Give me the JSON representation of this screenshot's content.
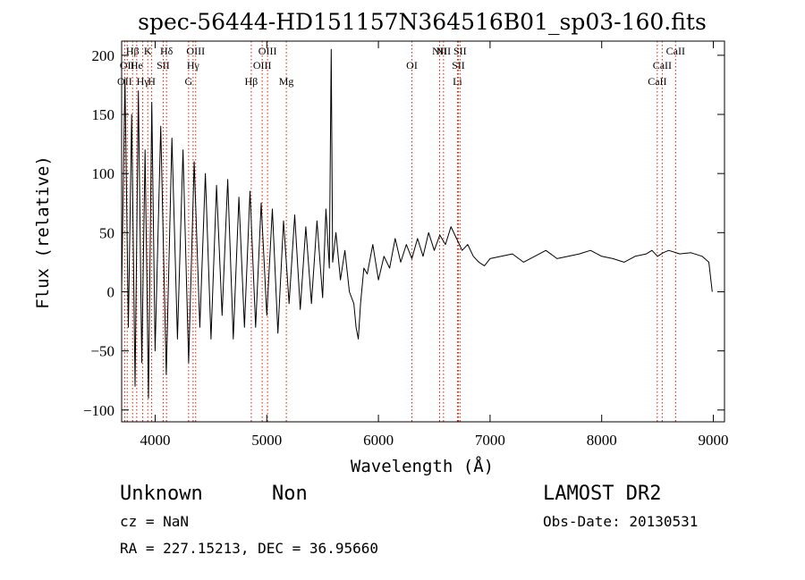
{
  "chart_data": {
    "type": "line",
    "title": "spec-56444-HD151157N364516B01_sp03-160.fits",
    "xlabel": "Wavelength (Å)",
    "ylabel": "Flux (relative)",
    "xlim": [
      3700,
      9100
    ],
    "ylim": [
      -110,
      212
    ],
    "x_ticks": [
      4000,
      5000,
      6000,
      7000,
      8000,
      9000
    ],
    "y_ticks": [
      -100,
      -50,
      0,
      50,
      100,
      150,
      200
    ],
    "y_tick_labels": [
      "−100",
      "−50",
      "0",
      "50",
      "100",
      "150",
      "200"
    ],
    "grid": false,
    "series": [
      {
        "x": [
          3700,
          3730,
          3760,
          3790,
          3820,
          3850,
          3880,
          3910,
          3940,
          3970,
          4000,
          4050,
          4100,
          4150,
          4200,
          4250,
          4300,
          4350,
          4400,
          4450,
          4500,
          4550,
          4600,
          4650,
          4700,
          4750,
          4800,
          4850,
          4900,
          4950,
          5000,
          5050,
          5100,
          5150,
          5200,
          5250,
          5300,
          5350,
          5400,
          5450,
          5500,
          5530,
          5560,
          5577,
          5590,
          5620,
          5660,
          5700,
          5740,
          5780,
          5800,
          5820,
          5840,
          5870,
          5900,
          5950,
          6000,
          6050,
          6100,
          6150,
          6200,
          6250,
          6300,
          6350,
          6400,
          6450,
          6500,
          6550,
          6600,
          6650,
          6700,
          6750,
          6800,
          6850,
          6900,
          6950,
          7000,
          7100,
          7200,
          7300,
          7400,
          7500,
          7600,
          7700,
          7800,
          7900,
          8000,
          8100,
          8200,
          8300,
          8400,
          8450,
          8500,
          8550,
          8600,
          8700,
          8800,
          8900,
          8960,
          8990
        ],
        "values": [
          0,
          180,
          -30,
          150,
          -80,
          170,
          -60,
          120,
          -90,
          160,
          -50,
          140,
          -70,
          130,
          -40,
          120,
          -60,
          110,
          -30,
          100,
          -40,
          90,
          -20,
          95,
          -40,
          80,
          -30,
          85,
          -30,
          75,
          -20,
          70,
          -35,
          60,
          -10,
          65,
          -15,
          55,
          -10,
          60,
          -5,
          70,
          20,
          205,
          25,
          50,
          10,
          35,
          0,
          -10,
          -30,
          -40,
          -10,
          20,
          15,
          40,
          10,
          30,
          20,
          45,
          25,
          40,
          28,
          45,
          30,
          50,
          35,
          48,
          40,
          55,
          45,
          35,
          40,
          30,
          25,
          22,
          28,
          30,
          32,
          25,
          30,
          35,
          28,
          30,
          32,
          35,
          30,
          28,
          25,
          30,
          32,
          35,
          30,
          33,
          35,
          32,
          33,
          30,
          25,
          0
        ]
      }
    ],
    "lines": [
      {
        "wavelength": 3727,
        "label": "OII",
        "row": 3
      },
      {
        "wavelength": 3750,
        "label": "OII",
        "row": 2
      },
      {
        "wavelength": 3798,
        "label": "Hβ",
        "row": 1
      },
      {
        "wavelength": 3835,
        "label": "He",
        "row": 2
      },
      {
        "wavelength": 3889,
        "label": "Hγ",
        "row": 3
      },
      {
        "wavelength": 3934,
        "label": "K",
        "row": 1
      },
      {
        "wavelength": 3969,
        "label": "H",
        "row": 3
      },
      {
        "wavelength": 4072,
        "label": "SII",
        "row": 2
      },
      {
        "wavelength": 4102,
        "label": "Hδ",
        "row": 1
      },
      {
        "wavelength": 4300,
        "label": "G",
        "row": 3
      },
      {
        "wavelength": 4340,
        "label": "Hγ",
        "row": 2
      },
      {
        "wavelength": 4363,
        "label": "OIII",
        "row": 1
      },
      {
        "wavelength": 4861,
        "label": "Hβ",
        "row": 3
      },
      {
        "wavelength": 4959,
        "label": "OIII",
        "row": 2
      },
      {
        "wavelength": 5007,
        "label": "OIII",
        "row": 1
      },
      {
        "wavelength": 5175,
        "label": "Mg",
        "row": 3
      },
      {
        "wavelength": 6300,
        "label": "OI",
        "row": 2
      },
      {
        "wavelength": 6548,
        "label": "NII",
        "row": 1
      },
      {
        "wavelength": 6583,
        "label": "NII",
        "row": 1
      },
      {
        "wavelength": 6708,
        "label": "Li",
        "row": 3
      },
      {
        "wavelength": 6716,
        "label": "SII",
        "row": 2
      },
      {
        "wavelength": 6731,
        "label": "SII",
        "row": 1
      },
      {
        "wavelength": 8498,
        "label": "CaII",
        "row": 3
      },
      {
        "wavelength": 8542,
        "label": "CaII",
        "row": 2
      },
      {
        "wavelength": 8662,
        "label": "CaII",
        "row": 1
      }
    ],
    "line_color": "#cc2200"
  },
  "info": {
    "class": "Unknown",
    "subclass": "Non",
    "survey": "LAMOST DR2",
    "cz": "cz = NaN",
    "obs_date": "Obs-Date: 20130531",
    "coords": "RA = 227.15213, DEC =  36.95660"
  }
}
